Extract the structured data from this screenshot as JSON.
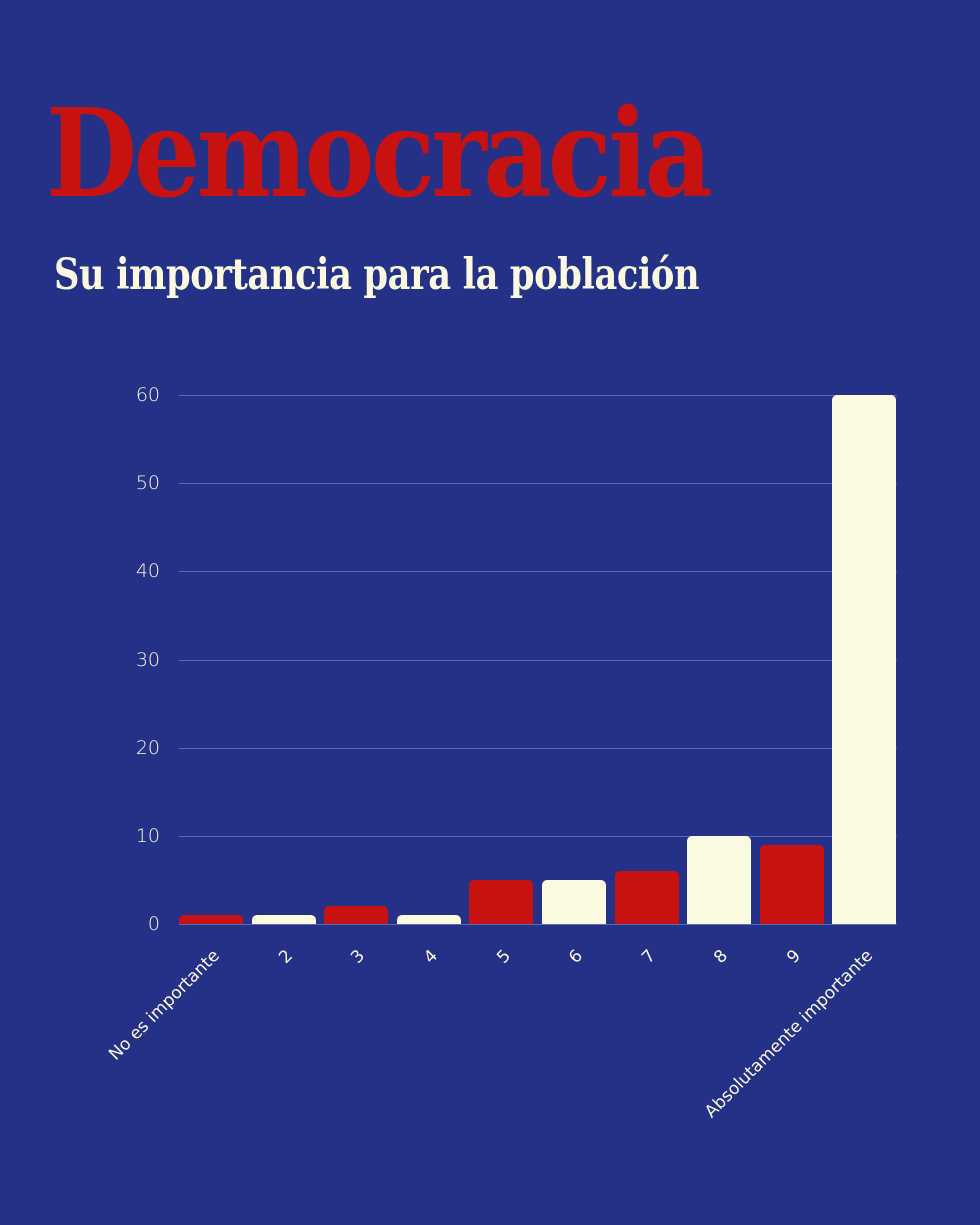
{
  "header": {
    "title": "Democracia",
    "subtitle": "Su importancia para la población"
  },
  "colors": {
    "background": "#243186",
    "red": "#c81212",
    "cream": "#fcf9e1",
    "grid": "#5f69ad"
  },
  "chart_data": {
    "type": "bar",
    "title": "Democracia",
    "subtitle": "Su importancia para la población",
    "xlabel": "",
    "ylabel": "",
    "categories": [
      "No es importante",
      "2",
      "3",
      "4",
      "5",
      "6",
      "7",
      "8",
      "9",
      "Absolutamente importante"
    ],
    "values": [
      1,
      1,
      2,
      1,
      5,
      5,
      6,
      10,
      9,
      60
    ],
    "bar_colors": [
      "#c81212",
      "#fcf9e1",
      "#c81212",
      "#fcf9e1",
      "#c81212",
      "#fcf9e1",
      "#c81212",
      "#fcf9e1",
      "#c81212",
      "#fcf9e1"
    ],
    "yticks": [
      "0",
      "10",
      "20",
      "30",
      "40",
      "50",
      "60"
    ],
    "ylim": [
      0,
      60
    ],
    "grid": true,
    "legend": null
  }
}
